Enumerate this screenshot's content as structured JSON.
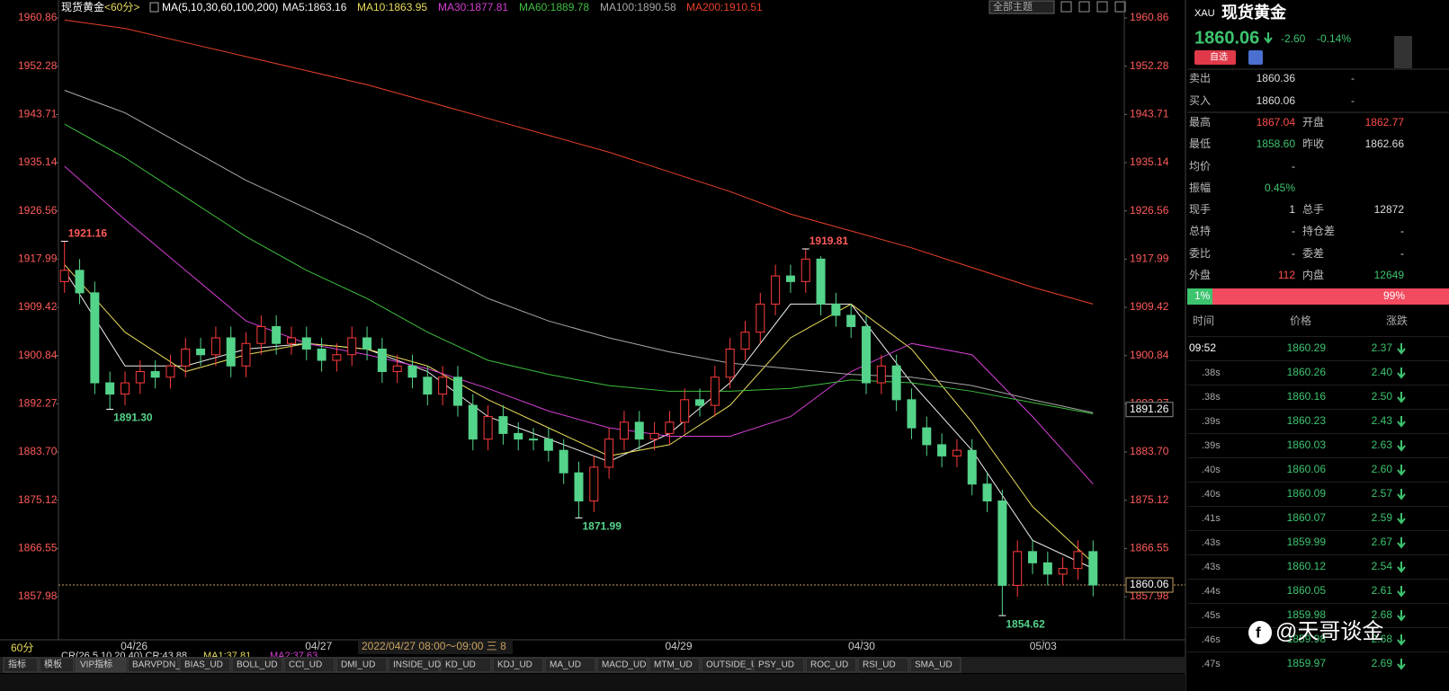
{
  "header": {
    "symbol": "现货黄金",
    "period": "<60分>",
    "ma_params": "MA(5,10,30,60,100,200)",
    "ma_labels": [
      "MA5:1863.16",
      "MA10:1863.95",
      "MA30:1877.81",
      "MA60:1889.78",
      "MA100:1890.58",
      "MA200:1910.51"
    ],
    "theme": "全部主题"
  },
  "chart": {
    "type": "candlestick",
    "ylim": [
      1851.28,
      1962.14
    ],
    "xlim": [
      -0.4,
      68.4
    ],
    "yticks": [
      1960.86,
      1952.28,
      1943.71,
      1935.14,
      1926.56,
      1917.99,
      1909.42,
      1900.84,
      1892.27,
      {
        "value": 1883.7,
        "label": "1883.70"
      },
      1875.12,
      1866.55,
      1857.98
    ],
    "xticks": [
      {
        "value": 4.6,
        "label": "04/26"
      },
      {
        "value": 16.8,
        "label": "04/27"
      },
      {
        "value": 40.6,
        "label": "04/29"
      },
      {
        "value": 52.7,
        "label": "04/30"
      },
      {
        "value": 64.7,
        "label": "05/03"
      }
    ],
    "open": [
      1914,
      1916,
      1912,
      1896,
      1894,
      1896,
      1898,
      1897,
      1899,
      1902,
      1901,
      1904,
      1899,
      1903,
      1906,
      1903,
      1904,
      1902,
      1900,
      1901,
      1904,
      1902,
      1898,
      1899,
      1897,
      1894,
      1897,
      1892,
      1886,
      1890,
      1887,
      1886,
      1886,
      1884,
      1880,
      1875,
      1881,
      1886,
      1889,
      1886,
      1887,
      1889,
      1893,
      1892,
      1897,
      1902,
      1905,
      1910,
      1915,
      1914,
      1918,
      1910,
      1908,
      1906,
      1896,
      1899,
      1893,
      1888,
      1885,
      1883,
      1884,
      1878,
      1875,
      1860,
      1866,
      1864,
      1862,
      1863,
      1866
    ],
    "high": [
      1921.16,
      1918,
      1914,
      1898,
      1898,
      1900,
      1900,
      1901,
      1904,
      1904,
      1906,
      1906,
      1905,
      1908,
      1908,
      1906,
      1906,
      1904,
      1903,
      1906,
      1906,
      1904,
      1901,
      1901,
      1899,
      1899,
      1899,
      1894,
      1892,
      1892,
      1889,
      1888,
      1888,
      1886,
      1882,
      1883,
      1888,
      1891,
      1891,
      1889,
      1891,
      1895,
      1895,
      1899,
      1904,
      1907,
      1912,
      1917,
      1917,
      1919.81,
      1918.5,
      1912,
      1910,
      1908,
      1901,
      1901,
      1895,
      1890,
      1887,
      1886,
      1886,
      1880,
      1877,
      1868,
      1868,
      1866,
      1865,
      1868,
      1868
    ],
    "low": [
      1912,
      1910,
      1894,
      1891.3,
      1892,
      1894,
      1895,
      1895,
      1897,
      1899,
      1899,
      1897,
      1897,
      1901,
      1901,
      1901,
      1900,
      1898,
      1898,
      1899,
      1900,
      1896,
      1896,
      1895,
      1892,
      1892,
      1890,
      1884,
      1884,
      1885,
      1884,
      1884,
      1882,
      1878,
      1871.99,
      1873,
      1879,
      1884,
      1884,
      1884,
      1885,
      1887,
      1890,
      1890,
      1895,
      1900,
      1903,
      1908,
      1912,
      1912,
      1908,
      1906,
      1904,
      1894,
      1894,
      1891,
      1886,
      1883,
      1881,
      1881,
      1876,
      1873,
      1854.62,
      1858,
      1862,
      1860,
      1860,
      1861,
      1858.06
    ],
    "close": [
      1916,
      1912,
      1896,
      1894,
      1896,
      1898,
      1897,
      1899,
      1902,
      1901,
      1904,
      1899,
      1903,
      1906,
      1903,
      1904,
      1902,
      1900,
      1901,
      1904,
      1902,
      1898,
      1899,
      1897,
      1894,
      1897,
      1892,
      1886,
      1890,
      1887,
      1886,
      1886,
      1884,
      1880,
      1875,
      1881,
      1886,
      1889,
      1886,
      1887,
      1889,
      1893,
      1892,
      1897,
      1902,
      1905,
      1910,
      1915,
      1914,
      1918,
      1910,
      1908,
      1906,
      1896,
      1899,
      1893,
      1888,
      1885,
      1883,
      1884,
      1878,
      1875,
      1860,
      1866,
      1864,
      1862,
      1863,
      1866,
      1860.06
    ],
    "up_color": "#ff3b3b",
    "down_color": "#54d38a",
    "ma_x": [
      0,
      4,
      8,
      12,
      16,
      20,
      24,
      28,
      32,
      36,
      40,
      44,
      48,
      52,
      56,
      60,
      64,
      68
    ],
    "series": [
      {
        "color": "#f0f0f0",
        "values": [
          1916,
          1899,
          1899,
          1902,
          1903,
          1902,
          1898,
          1890,
          1886,
          1882,
          1887,
          1896,
          1910,
          1910,
          1896,
          1884,
          1868,
          1863
        ]
      },
      {
        "color": "#e8dc5a",
        "values": [
          1917,
          1905,
          1898,
          1901,
          1903,
          1902,
          1899,
          1893,
          1888,
          1883,
          1885,
          1892,
          1904,
          1910,
          1902,
          1889,
          1874,
          1864
        ]
      },
      {
        "color": "#d43fd4",
        "values": [
          1934.5,
          1925,
          1916,
          1907,
          1903,
          1901,
          1898.5,
          1895,
          1891,
          1888,
          1886.5,
          1886.5,
          1890,
          1898,
          1903,
          1901,
          1890,
          1878
        ]
      },
      {
        "color": "#3fbf3f",
        "values": [
          1942,
          1936,
          1929,
          1922,
          1916,
          1911,
          1905,
          1900,
          1897.5,
          1895.5,
          1894.5,
          1894.5,
          1895,
          1896.5,
          1896,
          1894.5,
          1892.5,
          1890.5
        ]
      },
      {
        "color": "#a8a8a8",
        "values": [
          1948,
          1944,
          1938,
          1932,
          1927,
          1922,
          1916.5,
          1911,
          1907,
          1904,
          1901.5,
          1899.5,
          1898.5,
          1897.5,
          1897,
          1895.5,
          1893,
          1890.7
        ]
      },
      {
        "color": "#e8402a",
        "values": [
          1960.5,
          1959,
          1956.5,
          1954,
          1951.5,
          1949,
          1946,
          1943,
          1940,
          1937,
          1933.5,
          1930,
          1926,
          1923,
          1920,
          1916.5,
          1913,
          1910
        ]
      }
    ],
    "annotations": [
      {
        "value": 1921.16,
        "label": "1921.16"
      },
      {
        "value": 1891.3,
        "label": "1891.30"
      },
      {
        "value": 1871.99,
        "label": "1871.99"
      },
      {
        "value": 1919.81,
        "label": "1919.81"
      },
      {
        "value": 1854.62,
        "label": "1854.62"
      }
    ],
    "price_markers": [
      1891.26,
      1860.06
    ]
  },
  "overlay": {
    "period": "60分",
    "indicator": "CR(26,5,10,20,40) CR:43.88",
    "ma1": "MA1:37.81",
    "ma2": "MA2:37.63",
    "tooltip": "2022/04/27 08:00～09:00 三 8"
  },
  "tabs": [
    "指标",
    "模板",
    "VIP指标",
    "BARVPDN_UD",
    "BIAS_UD",
    "BOLL_UD",
    "CCI_UD",
    "DMI_UD",
    "INSIDE_UD",
    "KD_UD",
    "KDJ_UD",
    "MA_UD",
    "MACD_UD",
    "MTM_UD",
    "OUTSIDE_UD",
    "PSY_UD",
    "ROC_UD",
    "RSI_UD",
    "SMA_UD"
  ],
  "panel": {
    "code": "XAU",
    "name": "现货黄金",
    "price": "1860.06",
    "change": "-2.60",
    "change_pct": "-0.14%",
    "watch": "自选",
    "rows": [
      [
        "卖出",
        "1860.36",
        "-"
      ],
      [
        "买入",
        "1860.06",
        "-"
      ],
      [
        "最高",
        "1867.04",
        "开盘",
        "1862.77"
      ],
      [
        "最低",
        "1858.60",
        "昨收",
        "1862.66"
      ],
      [
        "均价",
        "-"
      ],
      [
        "振幅",
        "0.45%"
      ],
      [
        "现手",
        "1",
        "总手",
        "12872"
      ],
      [
        "总持",
        "-",
        "持仓差",
        "-"
      ],
      [
        "委比",
        "-",
        "委差",
        "-"
      ],
      [
        "外盘",
        "112",
        "内盘",
        "12649"
      ]
    ],
    "ratio": [
      {
        "value": 1,
        "label": "1%"
      },
      {
        "value": 99,
        "label": "99%"
      }
    ],
    "trade_header": [
      "时间",
      "价格",
      "涨跌"
    ],
    "trades": [
      [
        "09:52",
        "1860.29",
        "2.37"
      ],
      [
        ".38s",
        "1860.26",
        "2.40"
      ],
      [
        ".38s",
        "1860.16",
        "2.50"
      ],
      [
        ".39s",
        "1860.23",
        "2.43"
      ],
      [
        ".39s",
        "1860.03",
        "2.63"
      ],
      [
        ".40s",
        "1860.06",
        "2.60"
      ],
      [
        ".40s",
        "1860.09",
        "2.57"
      ],
      [
        ".41s",
        "1860.07",
        "2.59"
      ],
      [
        ".43s",
        "1859.99",
        "2.67"
      ],
      [
        ".43s",
        "1860.12",
        "2.54"
      ],
      [
        ".44s",
        "1860.05",
        "2.61"
      ],
      [
        ".45s",
        "1859.98",
        "2.68"
      ],
      [
        ".46s",
        "1859.98",
        "2.68"
      ],
      [
        ".47s",
        "1859.97",
        "2.69"
      ]
    ]
  },
  "watermark": "@天哥谈金"
}
